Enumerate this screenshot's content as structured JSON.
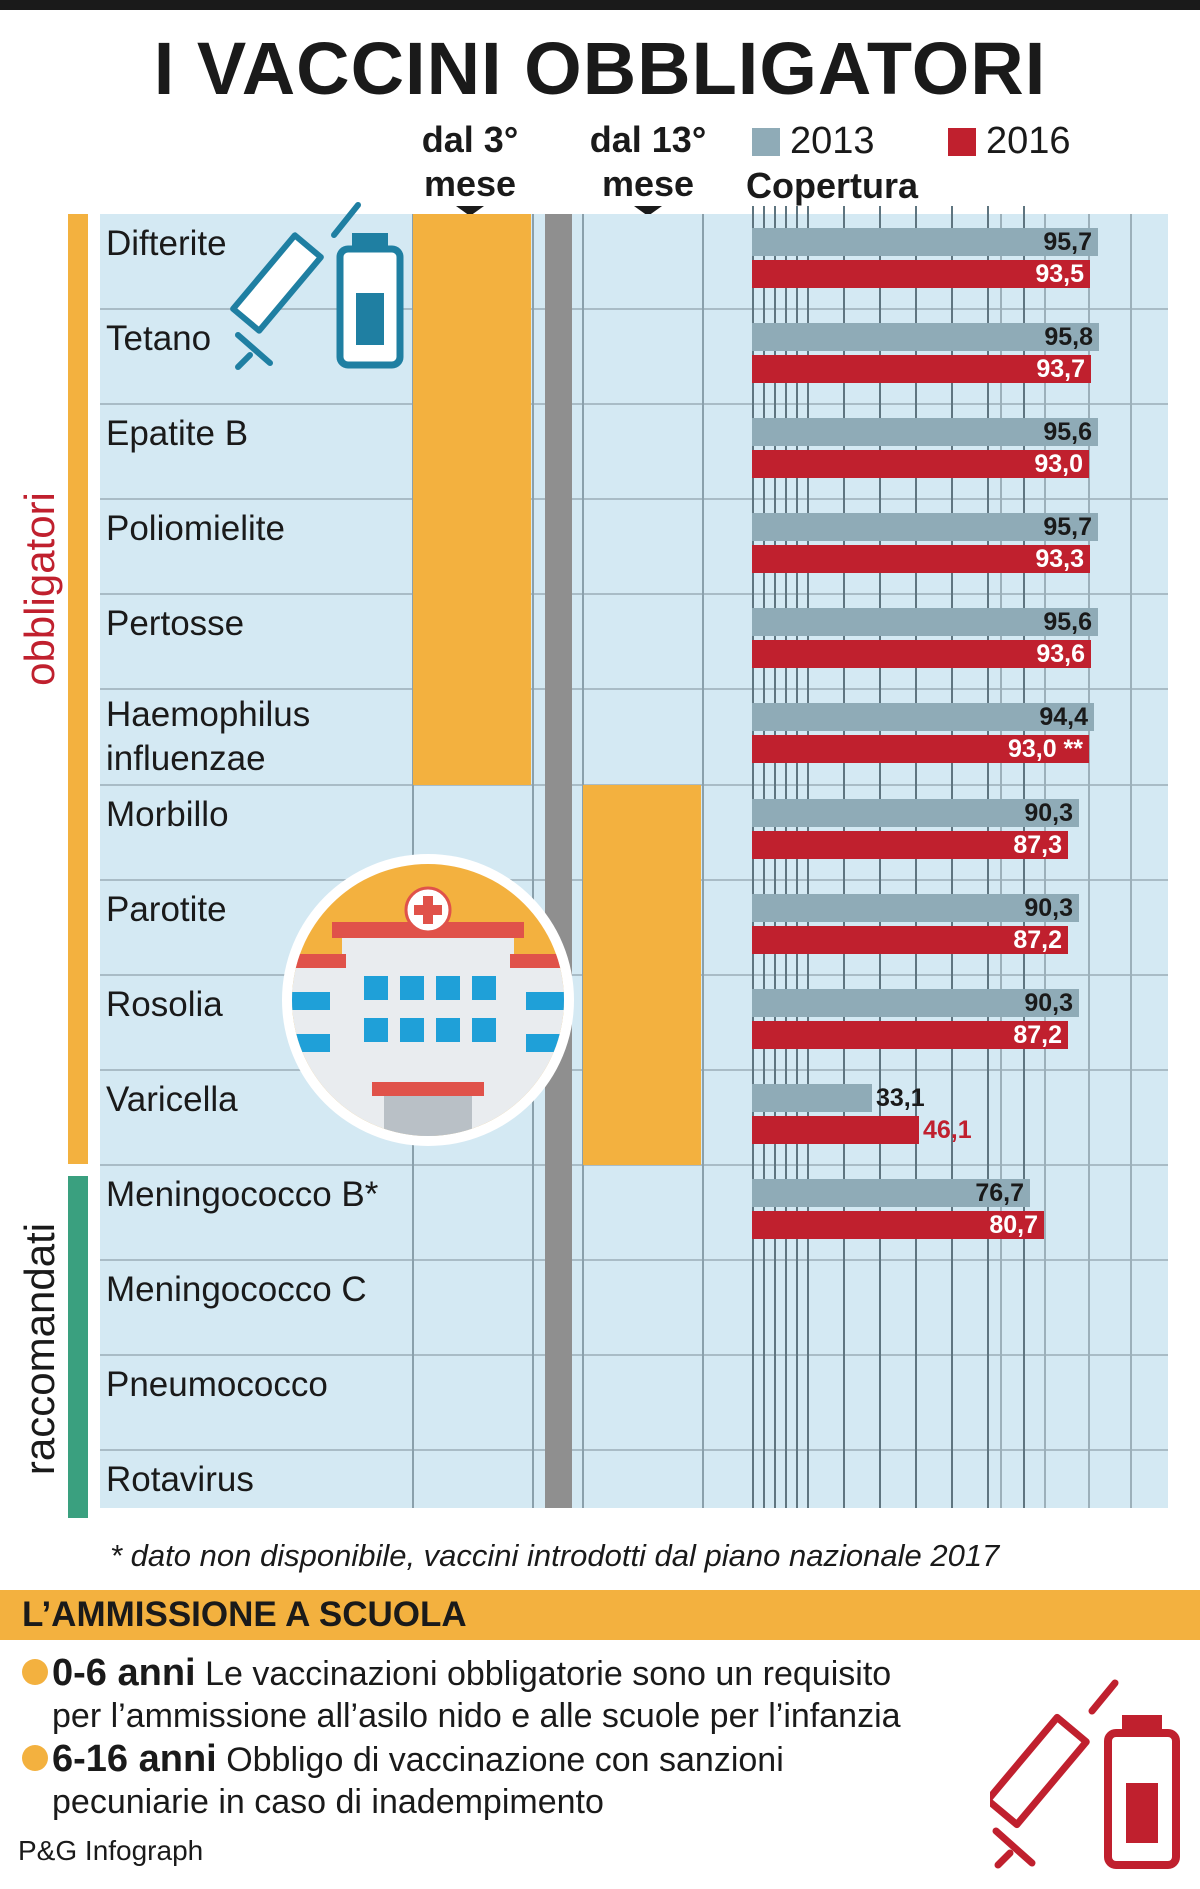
{
  "title": "I VACCINI OBBLIGATORI",
  "columns": {
    "col1_line1": "dal 3°",
    "col1_line2": "mese",
    "col2_line1": "dal 13°",
    "col2_line2": "mese",
    "coverage_label": "Copertura"
  },
  "legend": [
    {
      "label": "2013",
      "color": "#8fabb7"
    },
    {
      "label": "2016",
      "color": "#c0202e"
    }
  ],
  "groups": {
    "mandatory": "obbligatori",
    "recommended": "raccomandati"
  },
  "chart_data": {
    "type": "bar",
    "orientation": "horizontal",
    "categories": [
      "Difterite",
      "Tetano",
      "Epatite B",
      "Poliomielite",
      "Pertosse",
      "Haemophilus influenzae",
      "Morbillo",
      "Parotite",
      "Rosolia",
      "Varicella",
      "Meningococco B*",
      "Meningococco C",
      "Pneumococco",
      "Rotavirus"
    ],
    "series": [
      {
        "name": "2013",
        "values": [
          95.7,
          95.8,
          95.6,
          95.7,
          95.6,
          94.4,
          90.3,
          90.3,
          90.3,
          33.1,
          76.7,
          null,
          null,
          null
        ]
      },
      {
        "name": "2016",
        "values": [
          93.5,
          93.7,
          93.0,
          93.3,
          93.6,
          93.0,
          87.3,
          87.2,
          87.2,
          46.1,
          80.7,
          null,
          null,
          null
        ]
      }
    ],
    "value_labels_2013": [
      "95,7",
      "95,8",
      "95,6",
      "95,7",
      "95,6",
      "94,4",
      "90,3",
      "90,3",
      "90,3",
      "33,1",
      "76,7",
      "",
      "",
      ""
    ],
    "value_labels_2016": [
      "93,5",
      "93,7",
      "93,0",
      "93,3",
      "93,6",
      "93,0 **",
      "87,3",
      "87,2",
      "87,2",
      "46,1",
      "80,7",
      "",
      "",
      ""
    ],
    "schedule": {
      "dal_3_mese": [
        "Difterite",
        "Tetano",
        "Epatite B",
        "Poliomielite",
        "Pertosse",
        "Haemophilus influenzae"
      ],
      "dal_13_mese": [
        "Morbillo",
        "Parotite",
        "Rosolia",
        "Varicella"
      ]
    },
    "title": "Copertura",
    "xlim": [
      0,
      100
    ],
    "legend_position": "top-right"
  },
  "footnote": "* dato non disponibile, vaccini introdotti dal piano nazionale 2017",
  "school": {
    "heading": "L’AMMISSIONE A SCUOLA",
    "rule1_bold": "0-6 anni",
    "rule1_line1": "Le vaccinazioni obbligatorie sono un requisito",
    "rule1_line2": "per l’ammissione all’asilo nido e alle scuole per l’infanzia",
    "rule2_bold": "6-16 anni",
    "rule2_line1": "Obbligo di vaccinazione con sanzioni",
    "rule2_line2": "pecuniarie in caso di inadempimento"
  },
  "credit": "P&G Infograph",
  "icons": [
    "syringe-icon",
    "vial-icon",
    "hospital-icon"
  ]
}
